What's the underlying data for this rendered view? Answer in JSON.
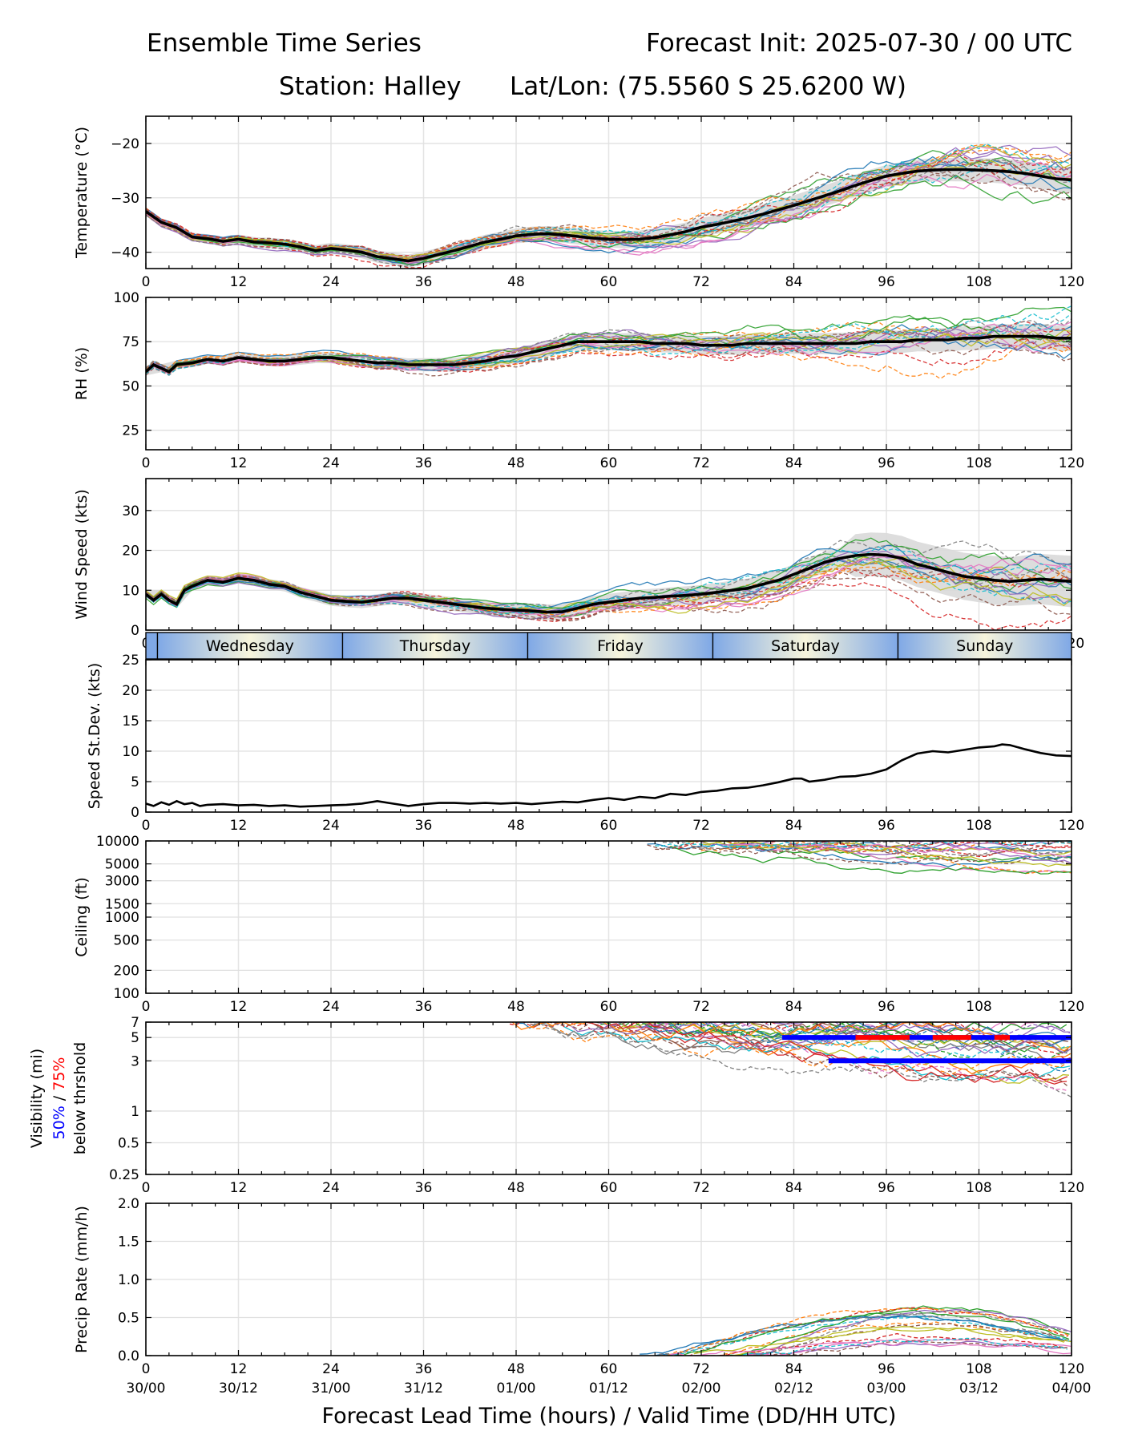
{
  "header": {
    "title_left": "Ensemble Time Series",
    "title_right": "Forecast Init: 2025-07-30 / 00 UTC",
    "station": "Station: Halley",
    "latlon": "Lat/Lon: (75.5560 S 25.6200 W)"
  },
  "x_axis": {
    "ticks": [
      0,
      12,
      24,
      36,
      48,
      60,
      72,
      84,
      96,
      108,
      120
    ],
    "valid_labels": [
      "30/00",
      "30/12",
      "31/00",
      "31/12",
      "01/00",
      "01/12",
      "02/00",
      "02/12",
      "03/00",
      "03/12",
      "04/00"
    ],
    "xlabel": "Forecast Lead Time (hours) / Valid Time (DD/HH UTC)",
    "xlim": [
      0,
      120
    ]
  },
  "day_bar": {
    "days": [
      {
        "label": "Wednesday",
        "start": 1.5,
        "end": 25.5
      },
      {
        "label": "Thursday",
        "start": 25.5,
        "end": 49.5
      },
      {
        "label": "Friday",
        "start": 49.5,
        "end": 73.5
      },
      {
        "label": "Saturday",
        "start": 73.5,
        "end": 97.5
      },
      {
        "label": "Sunday",
        "start": 97.5,
        "end": 120
      }
    ],
    "night_color": "#7fa8e6",
    "day_color": "#f7f5dc"
  },
  "colors": {
    "mean_line": "#000000",
    "spread_band": "#d9d9d9",
    "prob50": "#0000ff",
    "prob75": "#ff0000",
    "members": [
      "#1f77b4",
      "#ff7f0e",
      "#2ca02c",
      "#d62728",
      "#9467bd",
      "#8c564b",
      "#e377c2",
      "#7f7f7f",
      "#bcbd22",
      "#17becf"
    ]
  },
  "chart_data": [
    {
      "type": "line",
      "panel": "temperature",
      "ylabel": "Temperature (°C)",
      "ylim": [
        -43,
        -15
      ],
      "yticks": [
        -40,
        -30,
        -20
      ],
      "ytick_labels": [
        "−40",
        "−30",
        "−20"
      ],
      "grid": true,
      "series": [
        {
          "x": [
            0,
            2,
            4,
            6,
            8,
            10,
            12,
            14,
            16,
            18,
            20,
            22,
            24,
            26,
            28,
            30,
            32,
            34,
            36,
            38,
            40,
            42,
            44,
            46,
            48,
            50,
            52,
            54,
            56,
            58,
            60,
            62,
            64,
            66,
            68,
            70,
            72,
            74,
            76,
            78,
            80,
            82,
            84,
            86,
            88,
            90,
            92,
            94,
            96,
            98,
            100,
            102,
            104,
            106,
            108,
            110,
            112,
            114,
            116,
            118,
            120
          ],
          "values": [
            -32.5,
            -34.5,
            -35.5,
            -37.2,
            -37.5,
            -38.0,
            -37.6,
            -38.1,
            -38.3,
            -38.5,
            -39.0,
            -39.7,
            -39.3,
            -39.6,
            -40.0,
            -40.8,
            -41.2,
            -41.6,
            -41.1,
            -40.4,
            -39.7,
            -38.9,
            -38.1,
            -37.6,
            -37.0,
            -36.7,
            -36.6,
            -36.8,
            -37.1,
            -37.4,
            -37.6,
            -37.7,
            -37.6,
            -37.3,
            -36.8,
            -36.2,
            -35.4,
            -34.9,
            -34.3,
            -33.7,
            -33.0,
            -32.2,
            -31.4,
            -30.5,
            -29.6,
            -28.7,
            -27.7,
            -26.8,
            -26.0,
            -25.5,
            -25.1,
            -24.9,
            -24.8,
            -24.8,
            -24.9,
            -25.0,
            -25.2,
            -25.5,
            -26.0,
            -26.5,
            -26.7
          ]
        }
      ]
    },
    {
      "type": "line",
      "panel": "relative_humidity",
      "ylabel": "RH (%)",
      "ylim": [
        14,
        100
      ],
      "yticks": [
        25,
        50,
        75,
        100
      ],
      "grid": true,
      "series": [
        {
          "x": [
            0,
            1,
            2,
            3,
            4,
            6,
            8,
            10,
            12,
            14,
            16,
            18,
            20,
            22,
            24,
            26,
            28,
            30,
            32,
            34,
            36,
            38,
            40,
            42,
            44,
            46,
            48,
            50,
            52,
            54,
            56,
            58,
            60,
            62,
            64,
            66,
            68,
            70,
            72,
            74,
            76,
            78,
            80,
            82,
            84,
            86,
            88,
            90,
            92,
            94,
            96,
            98,
            100,
            102,
            104,
            106,
            108,
            110,
            112,
            114,
            116,
            118,
            120
          ],
          "values": [
            58,
            62,
            60,
            58,
            62,
            63,
            65,
            64,
            66,
            65,
            64,
            64,
            65,
            66,
            66,
            65,
            64,
            63,
            63,
            62,
            62,
            62,
            62,
            63,
            64,
            66,
            67,
            69,
            71,
            73,
            75,
            75,
            75,
            75,
            75,
            74,
            74,
            74,
            73,
            73,
            73,
            74,
            74,
            74,
            74,
            74,
            74,
            74,
            74,
            75,
            75,
            75,
            76,
            76,
            76,
            77,
            77,
            78,
            78,
            78,
            78,
            77,
            77
          ]
        }
      ]
    },
    {
      "type": "line",
      "panel": "wind_speed",
      "ylabel": "Wind Speed (kts)",
      "ylim": [
        0,
        38
      ],
      "yticks": [
        0,
        10,
        20,
        30
      ],
      "grid": true,
      "series": [
        {
          "x": [
            0,
            1,
            2,
            3,
            4,
            5,
            6,
            8,
            10,
            12,
            14,
            16,
            18,
            20,
            22,
            24,
            26,
            28,
            30,
            32,
            34,
            36,
            38,
            40,
            42,
            44,
            46,
            48,
            50,
            52,
            54,
            56,
            58,
            60,
            62,
            64,
            66,
            68,
            70,
            72,
            74,
            76,
            78,
            80,
            82,
            84,
            86,
            88,
            90,
            92,
            94,
            96,
            98,
            100,
            102,
            104,
            106,
            108,
            110,
            112,
            114,
            116,
            118,
            120
          ],
          "values": [
            9,
            7.5,
            9,
            7.5,
            6.5,
            10,
            11,
            12.5,
            12,
            13,
            12.5,
            11.5,
            11,
            9.5,
            8.5,
            7.5,
            7.2,
            7.0,
            7.5,
            8.0,
            8.0,
            7.5,
            7.0,
            6.5,
            6.0,
            5.5,
            5.2,
            5.0,
            4.8,
            4.5,
            4.6,
            5.5,
            6.5,
            7.0,
            7.5,
            8.0,
            8.2,
            8.5,
            8.7,
            9.0,
            9.5,
            10.0,
            10.5,
            11.5,
            12.5,
            14.0,
            15.5,
            17.0,
            18.0,
            18.7,
            19.0,
            18.8,
            18.0,
            16.5,
            15.5,
            14.5,
            13.5,
            13.0,
            12.5,
            12.2,
            12.5,
            12.8,
            12.5,
            12.2
          ]
        }
      ]
    },
    {
      "type": "line",
      "panel": "speed_stdev",
      "ylabel": "Speed St.Dev. (kts)",
      "ylim": [
        0,
        25
      ],
      "yticks": [
        0,
        5,
        10,
        15,
        20,
        25
      ],
      "grid": true,
      "series": [
        {
          "x": [
            0,
            1,
            2,
            3,
            4,
            5,
            6,
            7,
            8,
            10,
            12,
            14,
            16,
            18,
            20,
            22,
            24,
            26,
            28,
            30,
            32,
            34,
            36,
            38,
            40,
            42,
            44,
            46,
            48,
            50,
            52,
            54,
            56,
            58,
            60,
            62,
            64,
            66,
            68,
            70,
            72,
            74,
            76,
            78,
            80,
            82,
            84,
            85,
            86,
            88,
            90,
            92,
            94,
            96,
            98,
            100,
            102,
            104,
            106,
            108,
            110,
            111,
            112,
            114,
            116,
            118,
            120
          ],
          "values": [
            1.4,
            1.0,
            1.6,
            1.2,
            1.8,
            1.3,
            1.5,
            1.0,
            1.2,
            1.3,
            1.1,
            1.2,
            1.0,
            1.1,
            0.9,
            1.0,
            1.1,
            1.2,
            1.4,
            1.8,
            1.4,
            1.0,
            1.3,
            1.5,
            1.5,
            1.4,
            1.5,
            1.4,
            1.5,
            1.3,
            1.5,
            1.7,
            1.6,
            2.0,
            2.3,
            2.0,
            2.5,
            2.3,
            3.0,
            2.8,
            3.3,
            3.5,
            3.9,
            4.0,
            4.4,
            4.9,
            5.5,
            5.5,
            5.0,
            5.3,
            5.8,
            5.9,
            6.3,
            7.0,
            8.5,
            9.6,
            10.0,
            9.8,
            10.2,
            10.6,
            10.8,
            11.1,
            11.0,
            10.3,
            9.7,
            9.3,
            9.2
          ]
        }
      ]
    },
    {
      "type": "line",
      "panel": "ceiling",
      "ylabel": "Ceiling (ft)",
      "yscale": "log",
      "ylim": [
        100,
        10000
      ],
      "yticks": [
        100,
        200,
        500,
        1000,
        1500,
        3000,
        5000,
        10000
      ],
      "grid": true,
      "series": []
    },
    {
      "type": "line",
      "panel": "visibility",
      "ylabel": "Visibility (mi)",
      "ylabel_prob50": "50%",
      "ylabel_sep": " / ",
      "ylabel_prob75": "75%",
      "ylabel_sub": "below thrshold",
      "yscale": "log",
      "ylim": [
        0.25,
        7
      ],
      "yticks": [
        0.25,
        0.5,
        1,
        3,
        5,
        7
      ],
      "grid": true,
      "threshold_bars": [
        {
          "y": 5,
          "segments": [
            {
              "from": 82.5,
              "to": 120,
              "prob": "mixed"
            }
          ]
        },
        {
          "y": 3,
          "segments": [
            {
              "from": 88.5,
              "to": 120,
              "prob": "50%"
            }
          ]
        }
      ]
    },
    {
      "type": "line",
      "panel": "precip_rate",
      "ylabel": "Precip Rate (mm/h)",
      "ylim": [
        0,
        2.0
      ],
      "yticks": [
        0.0,
        0.5,
        1.0,
        1.5,
        2.0
      ],
      "ytick_labels": [
        "0.0",
        "0.5",
        "1.0",
        "1.5",
        "2.0"
      ],
      "grid": true,
      "series": []
    }
  ]
}
